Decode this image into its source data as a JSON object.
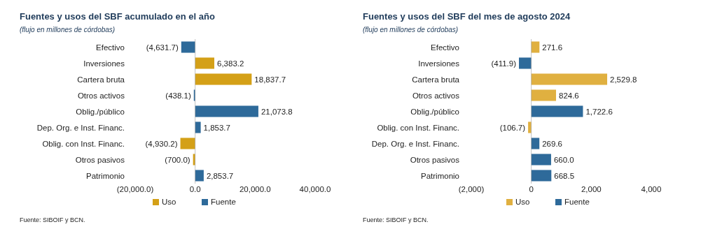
{
  "chart_data": [
    {
      "type": "bar",
      "orientation": "horizontal",
      "title": "Fuentes y usos del SBF acumulado en el año",
      "subtitle": "(flujo en millones de córdobas)",
      "categories": [
        "Efectivo",
        "Inversiones",
        "Cartera bruta",
        "Otros activos",
        "Oblig./público",
        "Dep. Org. e Inst. Financ.",
        "Oblig. con Inst. Financ.",
        "Otros pasivos",
        "Patrimonio"
      ],
      "series": [
        {
          "name": "Uso",
          "color": "#d4a017",
          "values": [
            null,
            6383.2,
            18837.7,
            null,
            null,
            null,
            -4930.2,
            -700.0,
            null
          ],
          "value_labels": [
            null,
            "6,383.2",
            "18,837.7",
            null,
            null,
            null,
            "(4,930.2)",
            "(700.0)",
            null
          ]
        },
        {
          "name": "Fuente",
          "color": "#2e6a9a",
          "values": [
            -4631.7,
            null,
            null,
            -438.1,
            21073.8,
            1853.7,
            null,
            null,
            2853.7
          ],
          "value_labels": [
            "(4,631.7)",
            null,
            null,
            "(438.1)",
            "21,073.8",
            "1,853.7",
            null,
            null,
            "2,853.7"
          ]
        }
      ],
      "xlim": [
        -20000,
        40000
      ],
      "xticks": [
        {
          "value": -20000,
          "label": "(20,000.0)"
        },
        {
          "value": 0,
          "label": "0.0"
        },
        {
          "value": 20000,
          "label": "20,000.0"
        },
        {
          "value": 40000,
          "label": "40,000.0"
        }
      ],
      "legend": "bottom",
      "annotations": [
        "Fuente: SIBOIF y BCN."
      ]
    },
    {
      "type": "bar",
      "orientation": "horizontal",
      "title": "Fuentes y usos del SBF del mes de agosto 2024",
      "subtitle": "(flujo en millones de córdobas)",
      "categories": [
        "Efectivo",
        "Inversiones",
        "Cartera bruta",
        "Otros activos",
        "Oblig./público",
        "Oblig. con Inst. Financ.",
        "Dep. Org. e Inst. Financ.",
        "Otros pasivos",
        "Patrimonio"
      ],
      "series": [
        {
          "name": "Uso",
          "color": "#e0b040",
          "values": [
            271.6,
            null,
            2529.8,
            824.6,
            null,
            -106.7,
            null,
            null,
            null
          ],
          "value_labels": [
            "271.6",
            null,
            "2,529.8",
            "824.6",
            null,
            "(106.7)",
            null,
            null,
            null
          ]
        },
        {
          "name": "Fuente",
          "color": "#2e6a9a",
          "values": [
            null,
            -411.9,
            null,
            null,
            1722.6,
            null,
            269.6,
            660.0,
            668.5
          ],
          "value_labels": [
            null,
            "(411.9)",
            null,
            null,
            "1,722.6",
            null,
            "269.6",
            "660.0",
            "668.5"
          ]
        }
      ],
      "xlim": [
        -2000,
        4000
      ],
      "xticks": [
        {
          "value": -2000,
          "label": "(2,000)"
        },
        0,
        {
          "value": 2000,
          "label": "2,000"
        },
        {
          "value": 4000,
          "label": "4,000"
        }
      ],
      "legend": "bottom",
      "annotations": [
        "Fuente: SIBOIF y BCN."
      ]
    }
  ]
}
